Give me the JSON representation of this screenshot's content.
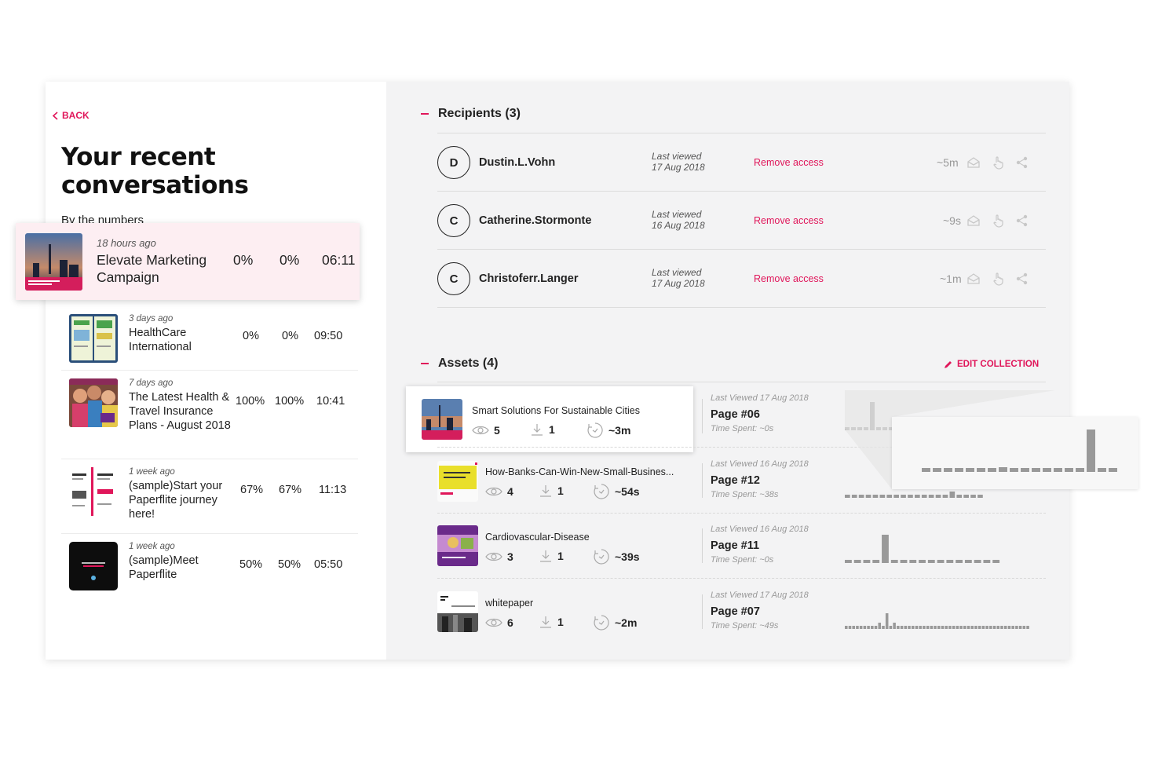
{
  "nav": {
    "back_label": "BACK"
  },
  "page": {
    "title_line1": "Your recent",
    "title_line2": "conversations",
    "subtitle": "By the numbers"
  },
  "conversations": [
    {
      "time": "18 hours ago",
      "title": "Elevate Marketing Campaign",
      "pct1": "0%",
      "pct2": "0%",
      "duration": "06:11"
    },
    {
      "time": "3 days ago",
      "title": "HealthCare International",
      "pct1": "0%",
      "pct2": "0%",
      "duration": "09:50"
    },
    {
      "time": "7 days ago",
      "title": "The Latest Health & Travel Insurance Plans - August 2018",
      "pct1": "100%",
      "pct2": "100%",
      "duration": "10:41"
    },
    {
      "time": "1 week ago",
      "title": "(sample)Start your Paperflite journey here!",
      "pct1": "67%",
      "pct2": "67%",
      "duration": "11:13"
    },
    {
      "time": "1 week ago",
      "title": "(sample)Meet Paperflite",
      "pct1": "50%",
      "pct2": "50%",
      "duration": "05:50"
    }
  ],
  "recipients": {
    "heading": "Recipients (3)",
    "items": [
      {
        "initial": "D",
        "name": "Dustin.L.Vohn",
        "lv_label": "Last viewed",
        "lv_date": "17 Aug 2018",
        "remove": "Remove access",
        "duration": "~5m"
      },
      {
        "initial": "C",
        "name": "Catherine.Stormonte",
        "lv_label": "Last viewed",
        "lv_date": "16 Aug 2018",
        "remove": "Remove access",
        "duration": "~9s"
      },
      {
        "initial": "C",
        "name": "Christoferr.Langer",
        "lv_label": "Last viewed",
        "lv_date": "17 Aug 2018",
        "remove": "Remove access",
        "duration": "~1m"
      }
    ]
  },
  "assets": {
    "heading": "Assets (4)",
    "edit_label": "EDIT COLLECTION",
    "items": [
      {
        "name": "Smart Solutions For Sustainable Cities",
        "views": "5",
        "downloads": "1",
        "time": "~3m",
        "last_viewed": "Last Viewed 17 Aug 2018",
        "page": "Page #06",
        "time_spent": "Time Spent: ~0s",
        "chart": [
          0,
          0,
          0,
          0,
          9,
          0,
          0,
          0,
          0,
          0
        ]
      },
      {
        "name": "How-Banks-Can-Win-New-Small-Busines...",
        "views": "4",
        "downloads": "1",
        "time": "~54s",
        "last_viewed": "Last Viewed 16 Aug 2018",
        "page": "Page #12",
        "time_spent": "Time Spent: ~38s",
        "chart": [
          0,
          0,
          0,
          0,
          0,
          0,
          0,
          1,
          0,
          0,
          0,
          0,
          0,
          0,
          0,
          2,
          0,
          0,
          0,
          0
        ]
      },
      {
        "name": "Cardiovascular-Disease",
        "views": "3",
        "downloads": "1",
        "time": "~39s",
        "last_viewed": "Last Viewed 16 Aug 2018",
        "page": "Page #11",
        "time_spent": "Time Spent: ~0s",
        "chart": [
          0,
          0,
          0,
          0,
          9,
          0,
          0,
          0,
          0,
          0,
          0,
          0,
          0,
          0,
          0,
          0,
          0
        ]
      },
      {
        "name": "whitepaper",
        "views": "6",
        "downloads": "1",
        "time": "~2m",
        "last_viewed": "Last Viewed 17 Aug 2018",
        "page": "Page #07",
        "time_spent": "Time Spent: ~49s",
        "chart": [
          0,
          0,
          0,
          0,
          0,
          0,
          0,
          0,
          0,
          2,
          0,
          5,
          0,
          2,
          0,
          0,
          0,
          0,
          0,
          0,
          0,
          0,
          0,
          0,
          0,
          0,
          0,
          0,
          0,
          0,
          0,
          0,
          0,
          0,
          0,
          0,
          0,
          0,
          0,
          0,
          0,
          0,
          0,
          0,
          0,
          0,
          0,
          0,
          0,
          0
        ]
      }
    ]
  },
  "zoom_chart": [
    0,
    0,
    0,
    0,
    0,
    0,
    0,
    1,
    0,
    0,
    0,
    0,
    0,
    0,
    0,
    9,
    0,
    0
  ],
  "colors": {
    "accent": "#e0165a",
    "bar": "#999999"
  },
  "icons": [
    "chevron-left-icon",
    "eye-icon",
    "download-icon",
    "timer-icon",
    "open-envelope-icon",
    "hand-pointer-icon",
    "share-icon",
    "pencil-icon"
  ]
}
